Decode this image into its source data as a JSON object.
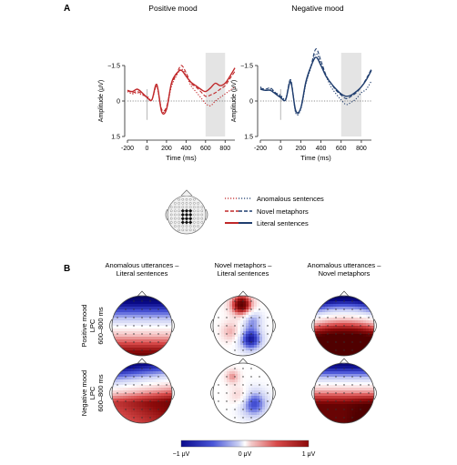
{
  "figure": {
    "panel_a_letter": "A",
    "panel_b_letter": "B",
    "legend": [
      {
        "label": "Anomalous sentences",
        "style": "dotted"
      },
      {
        "label": "Novel metaphors",
        "style": "dashed"
      },
      {
        "label": "Literal sentences",
        "style": "solid"
      }
    ],
    "colors": {
      "positive_mood": "#c0282a",
      "negative_mood": "#1f3d6e",
      "highlight_window": "#e4e4e4",
      "colorbar_neg": "#1a1ab4",
      "colorbar_pos": "#b41a1a"
    },
    "topomaps": {
      "column_titles": [
        [
          "Anomalous utterances –",
          "Literal sentences"
        ],
        [
          "Novel metaphors –",
          "Literal sentences"
        ],
        [
          "Anomalous utterances –",
          "Novel metaphors"
        ]
      ],
      "row_labels": [
        [
          "Positive mood",
          "LPC",
          "600–800 ms"
        ],
        [
          "Negative mood",
          "LPC",
          "600–800 ms"
        ]
      ],
      "colorbar_labels": [
        "−1 μV",
        "0 μV",
        "1 μV"
      ],
      "colorbar_range": [
        -1,
        1
      ]
    }
  },
  "chart_data": [
    {
      "type": "line",
      "title": "Positive mood",
      "xlabel": "Time (ms)",
      "ylabel": "Amplitude (μV)",
      "xlim": [
        -200,
        900
      ],
      "ylim": [
        1.5,
        -1.5
      ],
      "y_axis_inverted": true,
      "xticks": [
        "-200",
        "0",
        "200",
        "400",
        "600",
        "800"
      ],
      "yticks": [
        "−1.5",
        "0",
        "1.5"
      ],
      "highlight_window_ms": [
        600,
        800
      ],
      "x": [
        -200,
        -150,
        -100,
        -50,
        0,
        50,
        100,
        150,
        200,
        250,
        300,
        350,
        400,
        450,
        500,
        550,
        600,
        650,
        700,
        750,
        800,
        850,
        900
      ],
      "series": [
        {
          "name": "Anomalous sentences",
          "style": "dotted",
          "values": [
            -0.4,
            -0.3,
            -0.35,
            -0.25,
            -0.2,
            -0.05,
            -0.6,
            0.4,
            0.3,
            -0.6,
            -1.05,
            -1.35,
            -1.1,
            -0.65,
            -0.4,
            -0.15,
            0.1,
            0.2,
            0.0,
            -0.15,
            -0.3,
            -0.45,
            -0.6
          ]
        },
        {
          "name": "Novel metaphors",
          "style": "dashed",
          "values": [
            -0.45,
            -0.35,
            -0.4,
            -0.3,
            -0.15,
            -0.05,
            -0.65,
            0.35,
            0.25,
            -0.7,
            -1.1,
            -1.5,
            -1.2,
            -0.75,
            -0.6,
            -0.4,
            -0.2,
            -0.25,
            -0.35,
            -0.5,
            -0.65,
            -0.95,
            -1.25
          ]
        },
        {
          "name": "Literal sentences",
          "style": "solid",
          "values": [
            -0.45,
            -0.4,
            -0.5,
            -0.35,
            -0.15,
            -0.05,
            -0.7,
            0.45,
            0.35,
            -0.75,
            -1.15,
            -1.3,
            -1.05,
            -0.8,
            -0.65,
            -0.5,
            -0.4,
            -0.55,
            -0.75,
            -0.65,
            -0.75,
            -1.05,
            -1.4
          ]
        }
      ]
    },
    {
      "type": "line",
      "title": "Negative mood",
      "xlabel": "Time (ms)",
      "ylabel": "Amplitude (μV)",
      "xlim": [
        -200,
        900
      ],
      "ylim": [
        1.5,
        -1.5
      ],
      "y_axis_inverted": true,
      "xticks": [
        "-200",
        "0",
        "200",
        "400",
        "600",
        "800"
      ],
      "yticks": [
        "−1.5",
        "0",
        "1.5"
      ],
      "highlight_window_ms": [
        600,
        800
      ],
      "x": [
        -200,
        -150,
        -100,
        -50,
        0,
        50,
        100,
        150,
        200,
        250,
        300,
        350,
        400,
        450,
        500,
        550,
        600,
        650,
        700,
        750,
        800,
        850,
        900
      ],
      "series": [
        {
          "name": "Anomalous sentences",
          "style": "dotted",
          "values": [
            -0.6,
            -0.45,
            -0.5,
            -0.35,
            -0.25,
            -0.1,
            -0.85,
            0.5,
            0.35,
            -0.7,
            -1.4,
            -2.0,
            -1.55,
            -1.05,
            -0.6,
            -0.3,
            -0.05,
            0.15,
            0.05,
            -0.1,
            -0.35,
            -0.5,
            -0.85
          ]
        },
        {
          "name": "Novel metaphors",
          "style": "dashed",
          "values": [
            -0.55,
            -0.5,
            -0.55,
            -0.35,
            -0.2,
            -0.05,
            -0.9,
            0.45,
            0.3,
            -0.75,
            -1.45,
            -2.2,
            -1.7,
            -1.1,
            -0.75,
            -0.45,
            -0.25,
            -0.1,
            -0.2,
            -0.35,
            -0.6,
            -0.95,
            -1.35
          ]
        },
        {
          "name": "Literal sentences",
          "style": "solid",
          "values": [
            -0.5,
            -0.45,
            -0.45,
            -0.3,
            -0.15,
            -0.05,
            -0.8,
            0.4,
            0.3,
            -0.8,
            -1.45,
            -1.85,
            -1.5,
            -1.05,
            -0.75,
            -0.5,
            -0.3,
            -0.2,
            -0.25,
            -0.4,
            -0.6,
            -0.9,
            -1.3
          ]
        }
      ]
    }
  ]
}
